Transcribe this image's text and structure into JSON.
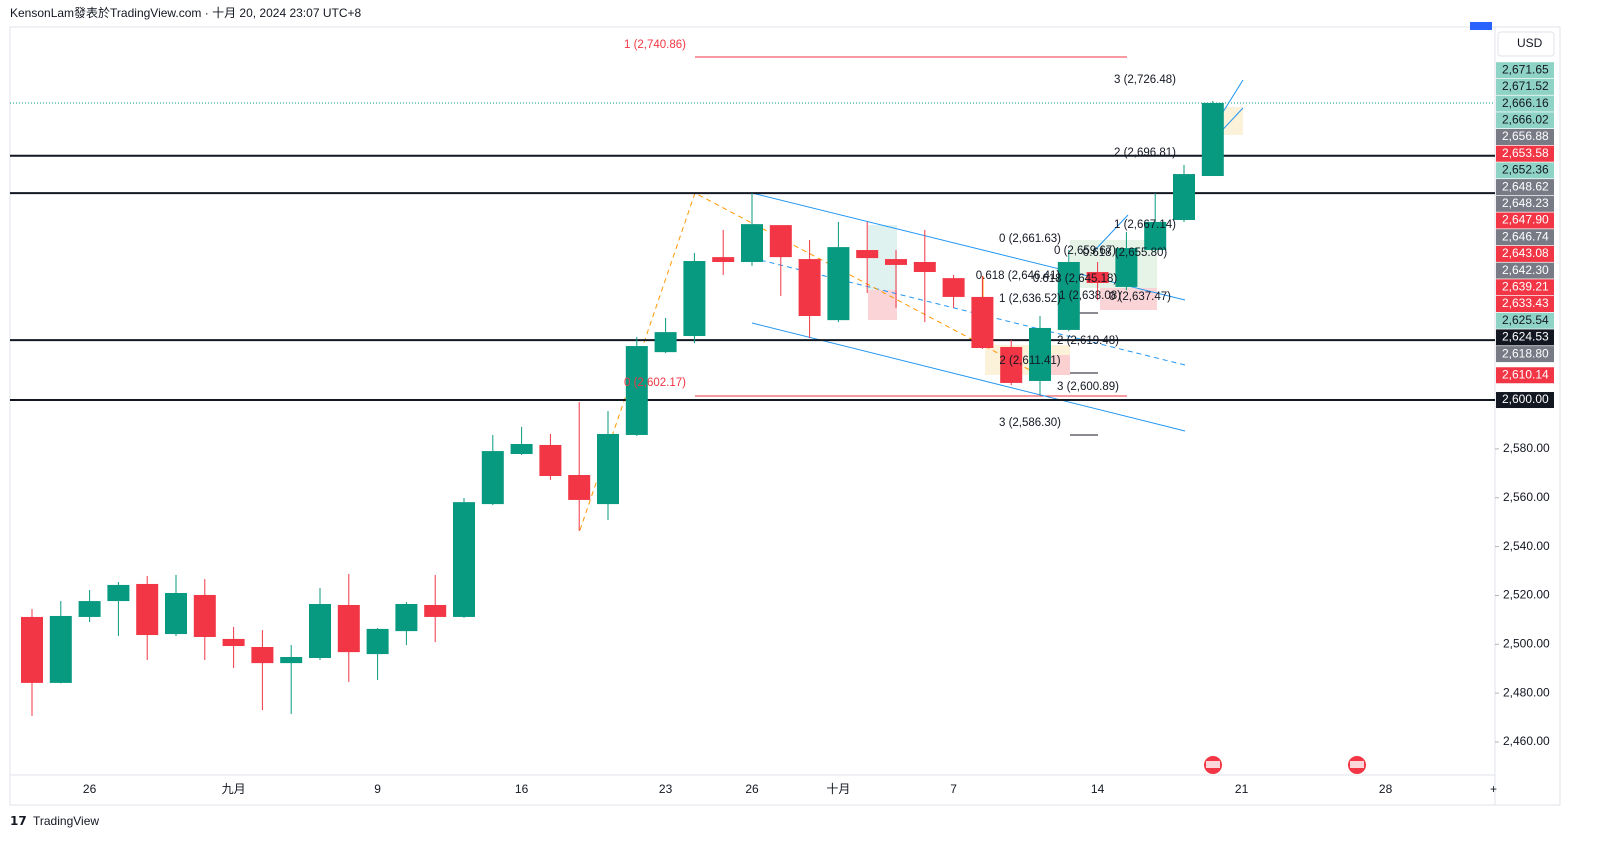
{
  "header": {
    "text": "KensonLam發表於TradingView.com · 十月 20, 2024 23:07 UTC+8"
  },
  "footer": {
    "text": "TradingView"
  },
  "chart_data": {
    "type": "candlestick",
    "currency": "USD",
    "up_color": "#089981",
    "down_color": "#f23645",
    "open": [
      2511.2,
      2484.2,
      2511.2,
      2517.7,
      2524.7,
      2504.2,
      2520.2,
      2502.2,
      2498.9,
      2492.3,
      2494.4,
      2516.1,
      2496.0,
      2505.4,
      2516.1,
      2511.2,
      2557.4,
      2577.9,
      2581.6,
      2569.3,
      2557.4,
      2585.7,
      2619.6,
      2626.2,
      2658.5,
      2656.5,
      2671.6,
      2657.7,
      2632.7,
      2661.4,
      2657.7,
      2656.5,
      2649.9,
      2642.2,
      2621.7,
      2607.8,
      2628.7,
      2652.4,
      2646.3,
      2661.4,
      2673.7,
      2691.7
    ],
    "high": [
      2514.4,
      2517.7,
      2522.2,
      2525.5,
      2528.0,
      2528.4,
      2526.7,
      2507.1,
      2505.8,
      2499.7,
      2523.0,
      2528.8,
      2506.7,
      2517.3,
      2528.4,
      2559.9,
      2585.7,
      2589.0,
      2586.1,
      2599.2,
      2595.5,
      2625.8,
      2633.6,
      2660.2,
      2669.6,
      2684.7,
      2671.6,
      2665.5,
      2672.9,
      2672.9,
      2661.4,
      2669.6,
      2651.2,
      2650.8,
      2624.6,
      2634.4,
      2661.4,
      2656.5,
      2668.8,
      2684.7,
      2696.2,
      2722.4
    ],
    "low": [
      2470.7,
      2484.0,
      2509.1,
      2503.4,
      2493.6,
      2503.4,
      2493.6,
      2490.3,
      2473.1,
      2471.5,
      2493.6,
      2484.6,
      2485.4,
      2499.7,
      2500.9,
      2510.8,
      2557.0,
      2577.5,
      2567.3,
      2546.4,
      2550.9,
      2585.3,
      2619.2,
      2623.3,
      2651.2,
      2654.9,
      2642.6,
      2625.4,
      2631.9,
      2643.8,
      2637.7,
      2631.9,
      2637.7,
      2620.9,
      2606.1,
      2602.0,
      2628.2,
      2640.9,
      2645.0,
      2660.6,
      2672.9,
      2691.7
    ],
    "close": [
      2484.2,
      2511.6,
      2517.7,
      2524.3,
      2503.8,
      2521.0,
      2503.0,
      2499.3,
      2492.3,
      2494.8,
      2516.5,
      2496.8,
      2506.3,
      2516.5,
      2511.2,
      2558.2,
      2579.1,
      2582.0,
      2568.9,
      2559.1,
      2586.1,
      2622.1,
      2627.8,
      2656.9,
      2656.5,
      2672.0,
      2658.5,
      2634.4,
      2662.6,
      2658.1,
      2655.3,
      2652.4,
      2642.2,
      2621.3,
      2607.0,
      2629.5,
      2656.5,
      2647.9,
      2662.2,
      2672.9,
      2692.5,
      2721.6
    ],
    "x_labels": [
      "26",
      "九月",
      "9",
      "16",
      "23",
      "26",
      "十月",
      "7",
      "14",
      "21",
      "28"
    ],
    "ylim": [
      2446.5,
      2752.7
    ],
    "yticks": [
      {
        "value": 2460,
        "label": "2,460.00"
      },
      {
        "value": 2480,
        "label": "2,480.00"
      },
      {
        "value": 2500,
        "label": "2,500.00"
      },
      {
        "value": 2520,
        "label": "2,520.00"
      },
      {
        "value": 2540,
        "label": "2,540.00"
      },
      {
        "value": 2560,
        "label": "2,560.00"
      },
      {
        "value": 2580,
        "label": "2,580.00"
      }
    ],
    "horizontal_lines": [
      2700,
      2684.7,
      2624.53,
      2600
    ],
    "last_price": 2721.6,
    "price_tags": [
      {
        "value": 2671.65,
        "label": "2,671.65",
        "color": "#8fd3c7"
      },
      {
        "value": 2671.52,
        "label": "2,671.52",
        "color": "#8fd3c7"
      },
      {
        "value": 2666.16,
        "label": "2,666.16",
        "color": "#8fd3c7"
      },
      {
        "value": 2666.02,
        "label": "2,666.02",
        "color": "#8fd3c7"
      },
      {
        "value": 2656.88,
        "label": "2,656.88",
        "color": "#787b86"
      },
      {
        "value": 2653.58,
        "label": "2,653.58",
        "color": "#f23645"
      },
      {
        "value": 2652.36,
        "label": "2,652.36",
        "color": "#8fd3c7"
      },
      {
        "value": 2648.62,
        "label": "2,648.62",
        "color": "#787b86"
      },
      {
        "value": 2648.23,
        "label": "2,648.23",
        "color": "#787b86"
      },
      {
        "value": 2647.9,
        "label": "2,647.90",
        "color": "#f23645"
      },
      {
        "value": 2646.74,
        "label": "2,646.74",
        "color": "#787b86"
      },
      {
        "value": 2643.08,
        "label": "2,643.08",
        "color": "#f23645"
      },
      {
        "value": 2642.3,
        "label": "2,642.30",
        "color": "#787b86"
      },
      {
        "value": 2639.21,
        "label": "2,639.21",
        "color": "#f23645"
      },
      {
        "value": 2633.43,
        "label": "2,633.43",
        "color": "#f23645"
      },
      {
        "value": 2625.54,
        "label": "2,625.54",
        "color": "#8fd3c7"
      },
      {
        "value": 2624.53,
        "label": "2,624.53",
        "color": "#131722"
      },
      {
        "value": 2618.8,
        "label": "2,618.80",
        "color": "#787b86"
      },
      {
        "value": 2610.14,
        "label": "2,610.14",
        "color": "#f23645"
      },
      {
        "value": 2600.0,
        "label": "2,600.00",
        "color": "#131722"
      }
    ],
    "annotations": [
      "1 (2,740.86)",
      "3 (2,726.48)",
      "2 (2,696.81)",
      "1 (2,667.14)",
      "0 (2,661.63)",
      "0 (2,659.67)",
      "0.618 (2,655.80)",
      "0.618 (2,646.41)",
      "0.618 (2,645.18)",
      "1 (2,636.52)",
      "1 (2,638.08)",
      "0 (2,637.47)",
      "2 (2,619.48)",
      "2 (2,611.41)",
      "0 (2,602.17)",
      "3 (2,600.89)",
      "3 (2,586.30)"
    ]
  }
}
